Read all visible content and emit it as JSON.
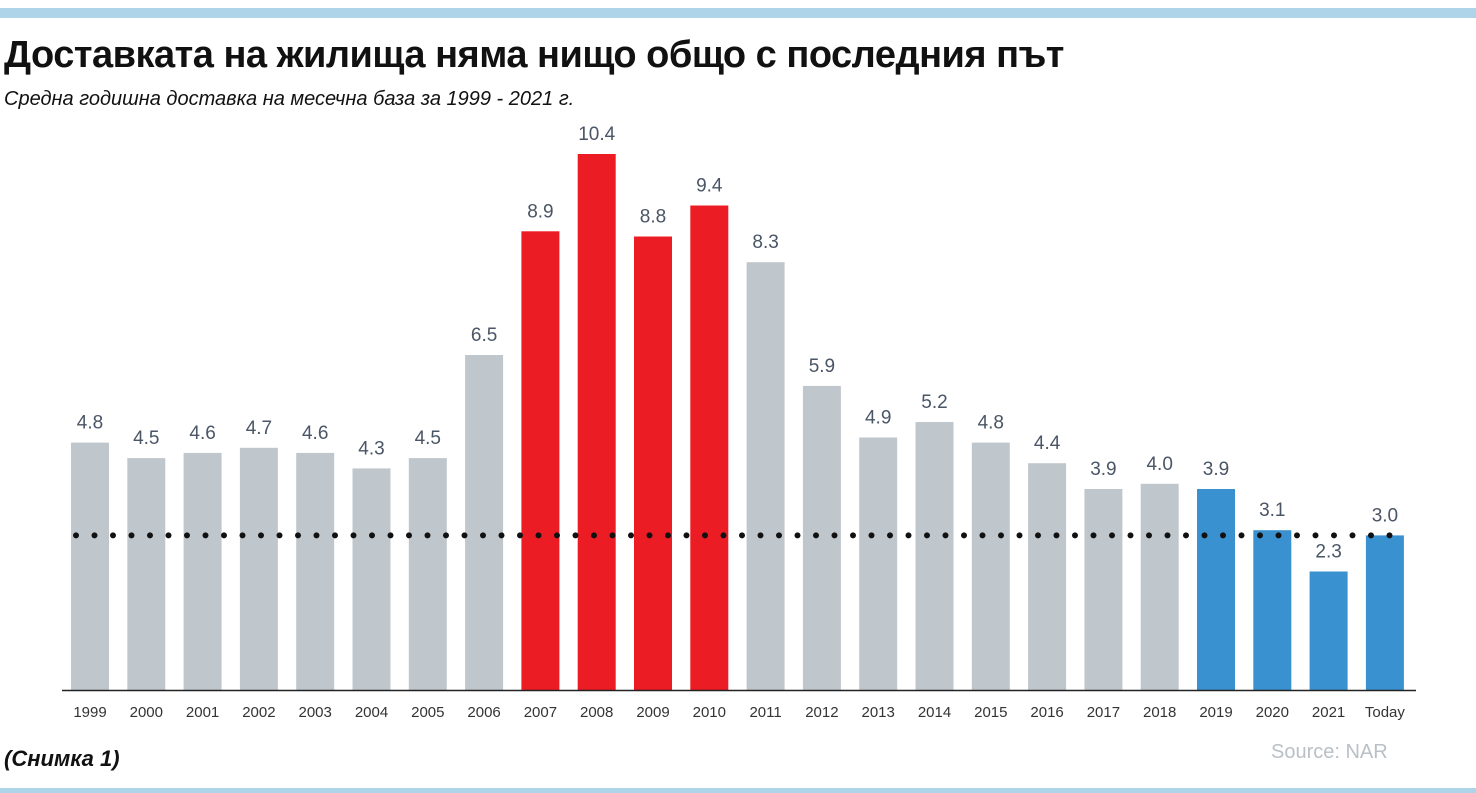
{
  "title": "Доставката на жилища няма нищо общо с последния път",
  "subtitle": "Средна годишна доставка на месечна база за 1999 - 2021 г.",
  "caption": "(Снимка 1)",
  "source": "Source: NAR",
  "colors": {
    "gray": "#c0c7cc",
    "red": "#ec1c24",
    "blue": "#3a91d0",
    "label": "#4a5566",
    "rule": "#aed4ea",
    "reference_line": "#111111"
  },
  "chart_data": {
    "type": "bar",
    "categories": [
      "1999",
      "2000",
      "2001",
      "2002",
      "2003",
      "2004",
      "2005",
      "2006",
      "2007",
      "2008",
      "2009",
      "2010",
      "2011",
      "2012",
      "2013",
      "2014",
      "2015",
      "2016",
      "2017",
      "2018",
      "2019",
      "2020",
      "2021",
      "Today"
    ],
    "values": [
      4.8,
      4.5,
      4.6,
      4.7,
      4.6,
      4.3,
      4.5,
      6.5,
      8.9,
      10.4,
      8.8,
      9.4,
      8.3,
      5.9,
      4.9,
      5.2,
      4.8,
      4.4,
      3.9,
      4.0,
      3.9,
      3.1,
      2.3,
      3.0
    ],
    "value_labels": [
      "4.8",
      "4.5",
      "4.6",
      "4.7",
      "4.6",
      "4.3",
      "4.5",
      "6.5",
      "8.9",
      "10.4",
      "8.8",
      "9.4",
      "8.3",
      "5.9",
      "4.9",
      "5.2",
      "4.8",
      "4.4",
      "3.9",
      "4.0",
      "3.9",
      "3.1",
      "2.3",
      "3.0"
    ],
    "bar_colors": [
      "gray",
      "gray",
      "gray",
      "gray",
      "gray",
      "gray",
      "gray",
      "gray",
      "red",
      "red",
      "red",
      "red",
      "gray",
      "gray",
      "gray",
      "gray",
      "gray",
      "gray",
      "gray",
      "gray",
      "blue",
      "blue",
      "blue",
      "blue"
    ],
    "reference_line": {
      "value": 3.0,
      "style": "dotted"
    },
    "ylim": [
      0,
      10.4
    ],
    "grid": false,
    "legend": "none",
    "xlabel": "",
    "ylabel": ""
  }
}
